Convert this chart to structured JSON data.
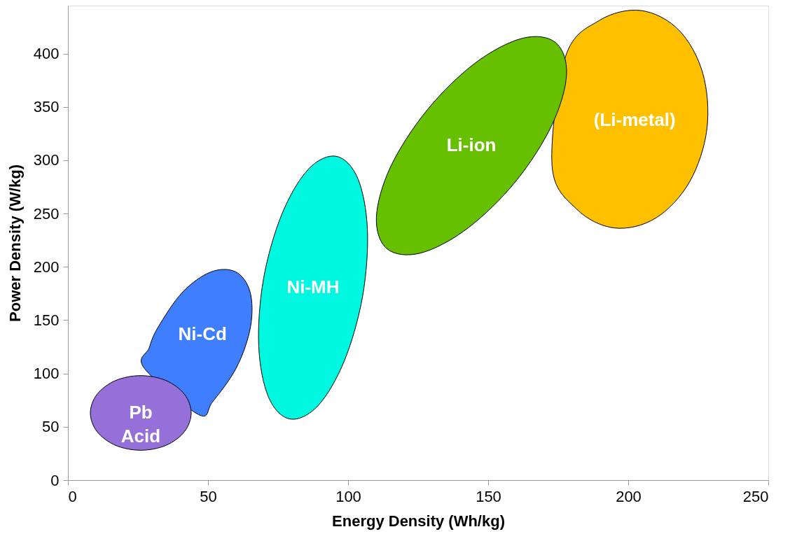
{
  "chart_data": {
    "type": "area",
    "xlabel": "Energy Density (Wh/kg)",
    "ylabel": "Power Density (W/kg)",
    "xlim": [
      0,
      250
    ],
    "xticks": [
      0,
      50,
      100,
      150,
      200,
      250
    ],
    "ylim": [
      0,
      445
    ],
    "yticks": [
      0,
      50,
      100,
      150,
      200,
      250,
      300,
      350,
      400
    ],
    "grid": false,
    "marker": "none",
    "series": [
      {
        "name": "(Li-metal)",
        "color": "#ffc000",
        "x": [
          204.5,
          218.0,
          226.6,
          228.1,
          221.9,
          209.8,
          195.0,
          181.4,
          172.8,
          177.6,
          189.7
        ],
        "values": [
          440.4,
          422.2,
          381.7,
          329.5,
          279.7,
          245.7,
          236.5,
          254.6,
          295.2,
          397.1,
          431.1
        ]
      },
      {
        "name": "Li-ion",
        "color": "#66c000",
        "x": [
          174.0,
          178.0,
          172.8,
          159.9,
          142.7,
          126.0,
          114.0,
          110.1,
          115.2,
          128.2,
          145.3,
          162.1
        ],
        "values": [
          410.5,
          380.9,
          333.2,
          280.3,
          236.2,
          213.0,
          216.7,
          246.4,
          294.0,
          347.0,
          391.0,
          414.3
        ]
      },
      {
        "name": "Ni-MH",
        "color": "#00f8e0",
        "x": [
          95.7,
          103.4,
          106.9,
          105.2,
          98.7,
          89.3,
          79.3,
          71.6,
          68.1,
          69.8,
          76.3,
          85.7
        ],
        "values": [
          303.7,
          283.3,
          235.3,
          172.6,
          112.1,
          69.9,
          57.3,
          77.8,
          125.8,
          188.5,
          249.0,
          291.2
        ]
      },
      {
        "name": "Ni-Cd",
        "color": "#3f7fff",
        "x": [
          59.8,
          65.0,
          65.2,
          60.3,
          51.6,
          46.6,
          27.2,
          29.0,
          32.1,
          40.8,
          50.9
        ],
        "values": [
          195.4,
          176.7,
          144.1,
          106.2,
          73.3,
          61.5,
          105.1,
          124.0,
          143.0,
          175.9,
          195.1
        ]
      },
      {
        "name": "Pb Acid",
        "color": "#9570d8",
        "x": [
          44,
          41.6,
          35,
          26,
          17,
          10.4,
          8,
          10.4,
          17,
          26,
          35,
          41.6
        ],
        "values": [
          63,
          80.5,
          93.4,
          98,
          93.4,
          80.5,
          63,
          45.5,
          32.6,
          28,
          32.6,
          45.5
        ]
      }
    ]
  }
}
